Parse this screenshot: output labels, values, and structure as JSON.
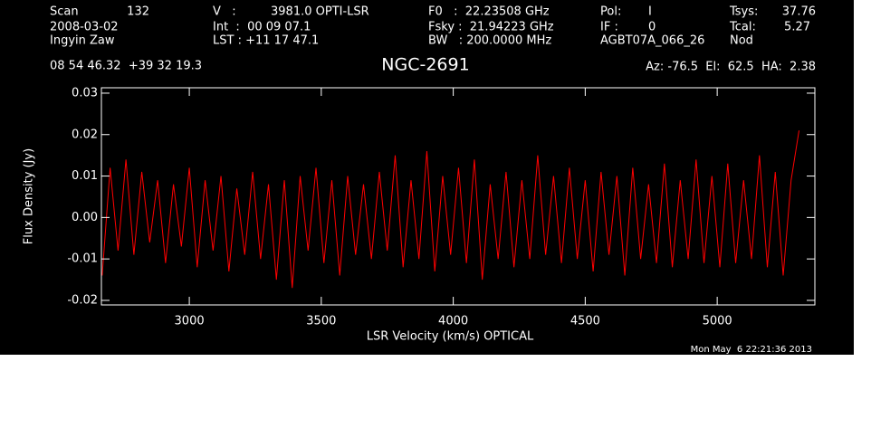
{
  "chart_data": {
    "type": "line",
    "title": "NGC-2691",
    "annotations": [
      "Scan",
      "132",
      "V   :",
      "3981.0 OPTI-LSR",
      "F0   :  22.23508 GHz",
      "Pol:",
      "I",
      "Tsys:",
      "37.76",
      "2008-03-02",
      "Int  :  00 09 07.1",
      "Fsky :  21.94223 GHz",
      "IF :",
      "0",
      "Tcal:",
      "5.27",
      "Ingyin Zaw",
      "LST : +11 17 47.1",
      "BW   : 200.0000 MHz",
      "AGBT07A_066_26",
      "Nod",
      "08 54 46.32  +39 32 19.3",
      "Az: -76.5  El:  62.5  HA:  2.38",
      "Mon May  6 22:21:36 2013"
    ],
    "x_label": "LSR Velocity (km/s) OPTICAL",
    "y_label": "Flux Density (Jy)",
    "color": "#ff0000",
    "x": [
      2670,
      2700,
      2730,
      2760,
      2790,
      2820,
      2850,
      2880,
      2910,
      2940,
      2970,
      3000,
      3030,
      3060,
      3090,
      3120,
      3150,
      3180,
      3210,
      3240,
      3270,
      3300,
      3330,
      3360,
      3390,
      3420,
      3450,
      3480,
      3510,
      3540,
      3570,
      3600,
      3630,
      3660,
      3690,
      3720,
      3750,
      3780,
      3810,
      3840,
      3870,
      3900,
      3930,
      3960,
      3990,
      4020,
      4050,
      4080,
      4110,
      4140,
      4170,
      4200,
      4230,
      4260,
      4290,
      4320,
      4350,
      4380,
      4410,
      4440,
      4470,
      4500,
      4530,
      4560,
      4590,
      4620,
      4650,
      4680,
      4710,
      4740,
      4770,
      4800,
      4830,
      4860,
      4890,
      4920,
      4950,
      4980,
      5010,
      5040,
      5070,
      5100,
      5130,
      5160,
      5190,
      5220,
      5250,
      5280,
      5310
    ],
    "values": [
      -0.014,
      0.012,
      -0.008,
      0.014,
      -0.009,
      0.011,
      -0.006,
      0.009,
      -0.011,
      0.008,
      -0.007,
      0.012,
      -0.012,
      0.009,
      -0.008,
      0.01,
      -0.013,
      0.007,
      -0.009,
      0.011,
      -0.01,
      0.008,
      -0.015,
      0.009,
      -0.017,
      0.01,
      -0.008,
      0.012,
      -0.011,
      0.009,
      -0.014,
      0.01,
      -0.009,
      0.008,
      -0.01,
      0.011,
      -0.008,
      0.015,
      -0.012,
      0.009,
      -0.01,
      0.016,
      -0.013,
      0.01,
      -0.009,
      0.012,
      -0.011,
      0.014,
      -0.015,
      0.008,
      -0.01,
      0.011,
      -0.012,
      0.009,
      -0.01,
      0.015,
      -0.009,
      0.01,
      -0.011,
      0.012,
      -0.01,
      0.009,
      -0.013,
      0.011,
      -0.009,
      0.01,
      -0.014,
      0.012,
      -0.01,
      0.008,
      -0.011,
      0.013,
      -0.012,
      0.009,
      -0.01,
      0.014,
      -0.011,
      0.01,
      -0.012,
      0.013,
      -0.011,
      0.009,
      -0.01,
      0.015,
      -0.012,
      0.011,
      -0.014,
      0.009,
      0.021
    ],
    "xlim": [
      2667,
      5370
    ],
    "ylim": [
      -0.0211,
      0.0313
    ],
    "xticks": [
      3000,
      3500,
      4000,
      4500,
      5000
    ],
    "yticks": [
      -0.02,
      -0.01,
      {
        "value": 0,
        "label": "0.00"
      },
      0.01,
      0.02,
      0.03
    ]
  }
}
